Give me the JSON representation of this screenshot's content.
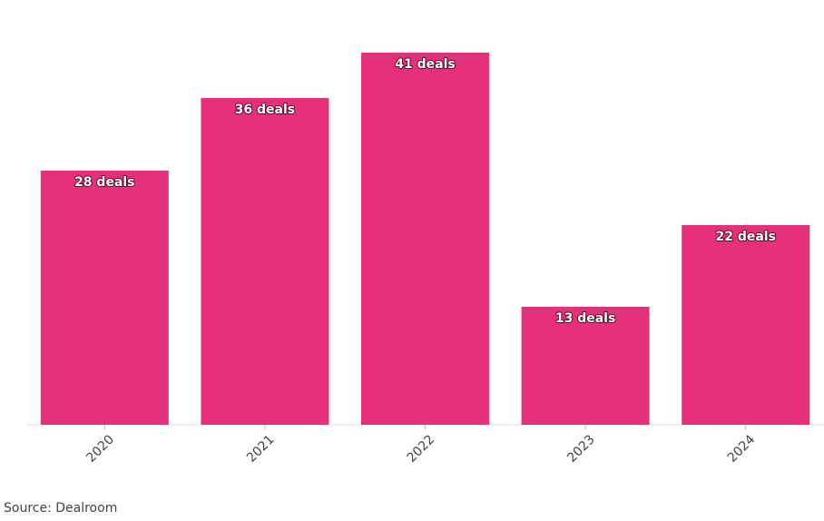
{
  "chart_data": {
    "type": "bar",
    "categories": [
      "2020",
      "2021",
      "2022",
      "2023",
      "2024"
    ],
    "values": [
      28,
      36,
      41,
      13,
      22
    ],
    "value_labels": [
      "28 deals",
      "36 deals",
      "41 deals",
      "13 deals",
      "22 deals"
    ],
    "color": "#e6317a",
    "source": "Source: Dealroom"
  }
}
